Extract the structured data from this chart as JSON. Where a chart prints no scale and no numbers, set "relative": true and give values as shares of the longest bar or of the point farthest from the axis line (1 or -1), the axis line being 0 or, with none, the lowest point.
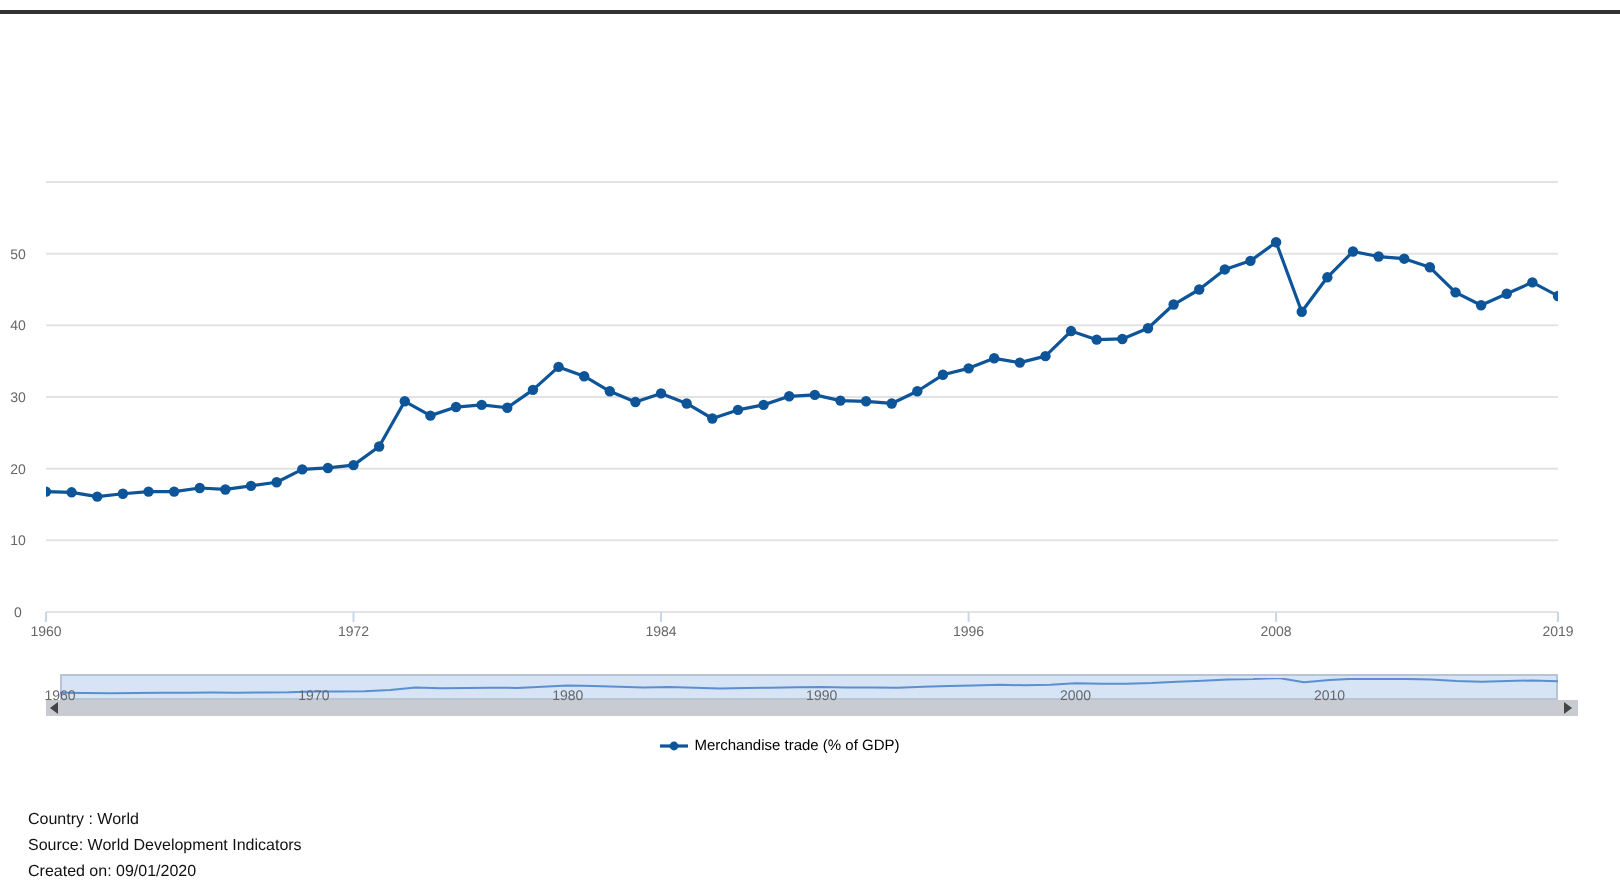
{
  "chart_data": [
    {
      "type": "line",
      "x": [
        1960,
        1961,
        1962,
        1963,
        1964,
        1965,
        1966,
        1967,
        1968,
        1969,
        1970,
        1971,
        1972,
        1973,
        1974,
        1975,
        1976,
        1977,
        1978,
        1979,
        1980,
        1981,
        1982,
        1983,
        1984,
        1985,
        1986,
        1987,
        1988,
        1989,
        1990,
        1991,
        1992,
        1993,
        1994,
        1995,
        1996,
        1997,
        1998,
        1999,
        2000,
        2001,
        2002,
        2003,
        2004,
        2005,
        2006,
        2007,
        2008,
        2009,
        2010,
        2011,
        2012,
        2013,
        2014,
        2015,
        2016,
        2017,
        2018,
        2019
      ],
      "series": [
        {
          "name": "Merchandise trade (% of GDP)",
          "color": "#0d5498",
          "values": [
            16.8,
            16.7,
            16.1,
            16.5,
            16.8,
            16.8,
            17.3,
            17.1,
            17.6,
            18.1,
            19.9,
            20.1,
            20.5,
            23.1,
            29.4,
            27.4,
            28.6,
            28.9,
            28.5,
            31.0,
            34.2,
            32.9,
            30.8,
            29.3,
            30.5,
            29.1,
            27.0,
            28.2,
            28.9,
            30.1,
            30.3,
            29.5,
            29.4,
            29.1,
            30.8,
            33.1,
            34.0,
            35.4,
            34.8,
            35.7,
            39.2,
            38.0,
            38.1,
            39.6,
            42.9,
            45.0,
            47.8,
            49.0,
            51.6,
            41.9,
            46.7,
            50.3,
            49.6,
            49.3,
            48.1,
            44.6,
            42.8,
            44.4,
            46.0,
            44.1
          ]
        }
      ],
      "xlim": [
        1960,
        2019
      ],
      "xticks": [
        1960,
        1972,
        1984,
        1996,
        2008,
        2019
      ],
      "ylim": [
        0,
        60
      ],
      "yticks": [
        0,
        10,
        20,
        30,
        40,
        50,
        {
          "value": 60,
          "label": null
        }
      ],
      "grid": "y",
      "marker": "circle",
      "line_style": "solid",
      "legend": "bottom",
      "annotations": [
        "Country : World",
        "Source: World Development Indicators",
        "Created on: 09/01/2020"
      ]
    },
    {
      "type": "line",
      "x": [
        1960,
        1961,
        1962,
        1963,
        1964,
        1965,
        1966,
        1967,
        1968,
        1969,
        1970,
        1971,
        1972,
        1973,
        1974,
        1975,
        1976,
        1977,
        1978,
        1979,
        1980,
        1981,
        1982,
        1983,
        1984,
        1985,
        1986,
        1987,
        1988,
        1989,
        1990,
        1991,
        1992,
        1993,
        1994,
        1995,
        1996,
        1997,
        1998,
        1999,
        2000,
        2001,
        2002,
        2003,
        2004,
        2005,
        2006,
        2007,
        2008,
        2009,
        2010,
        2011,
        2012,
        2013,
        2014,
        2015,
        2016,
        2017,
        2018,
        2019
      ],
      "series": [
        {
          "color": "#5b8fd0",
          "values": [
            0.33,
            0.32,
            0.31,
            0.32,
            0.33,
            0.33,
            0.34,
            0.33,
            0.34,
            0.35,
            0.39,
            0.39,
            0.4,
            0.45,
            0.57,
            0.53,
            0.55,
            0.56,
            0.55,
            0.6,
            0.66,
            0.64,
            0.6,
            0.57,
            0.59,
            0.56,
            0.52,
            0.55,
            0.56,
            0.58,
            0.59,
            0.57,
            0.57,
            0.56,
            0.6,
            0.64,
            0.66,
            0.69,
            0.67,
            0.69,
            0.76,
            0.74,
            0.74,
            0.77,
            0.83,
            0.87,
            0.93,
            0.95,
            1,
            0.81,
            0.91,
            0.97,
            0.96,
            0.96,
            0.93,
            0.86,
            0.83,
            0.86,
            0.89,
            0.85
          ]
        }
      ],
      "xlim": [
        1960,
        2019
      ],
      "xticks": [
        1960,
        1970,
        1980,
        1990,
        2000,
        2010
      ],
      "relative": true,
      "tick_labels": "x",
      "marker": "none",
      "line_style": "solid"
    }
  ]
}
